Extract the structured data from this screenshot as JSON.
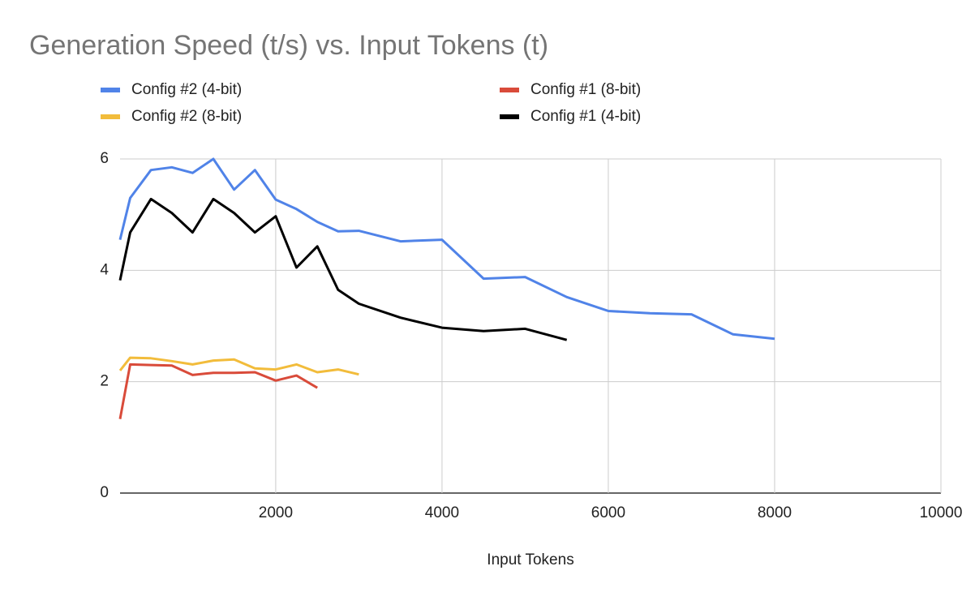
{
  "chart_data": {
    "type": "line",
    "title": "Generation Speed (t/s) vs. Input Tokens (t)",
    "x_label": "Input Tokens",
    "xlim": [
      128,
      10000
    ],
    "xticks": [
      2000,
      4000,
      6000,
      8000,
      10000
    ],
    "ylim": [
      0,
      6
    ],
    "yticks": [
      0,
      2,
      4,
      6
    ],
    "grid": true,
    "series": [
      {
        "name": "Config #2 (4-bit)",
        "color": "#5083e8",
        "x": [
          128,
          250,
          500,
          750,
          1000,
          1250,
          1500,
          1750,
          2000,
          2250,
          2500,
          2750,
          3000,
          3500,
          4000,
          4500,
          5000,
          5500,
          6000,
          6500,
          7000,
          7500,
          8000
        ],
        "values": [
          4.55,
          5.3,
          5.8,
          5.85,
          5.75,
          6.0,
          5.45,
          5.8,
          5.27,
          5.1,
          4.87,
          4.7,
          4.71,
          4.52,
          4.55,
          3.85,
          3.88,
          3.52,
          3.27,
          3.23,
          3.21,
          2.85,
          2.77
        ]
      },
      {
        "name": "Config #2 (8-bit)",
        "color": "#f2bc3b",
        "x": [
          128,
          250,
          500,
          750,
          1000,
          1250,
          1500,
          1750,
          2000,
          2250,
          2500,
          2750,
          3000
        ],
        "values": [
          2.2,
          2.43,
          2.42,
          2.37,
          2.31,
          2.38,
          2.4,
          2.24,
          2.22,
          2.31,
          2.17,
          2.22,
          2.13
        ]
      },
      {
        "name": "Config #1 (8-bit)",
        "color": "#d94b3a",
        "x": [
          128,
          250,
          500,
          750,
          1000,
          1250,
          1500,
          1750,
          2000,
          2250,
          2500
        ],
        "values": [
          1.33,
          2.31,
          2.3,
          2.29,
          2.12,
          2.16,
          2.16,
          2.17,
          2.02,
          2.11,
          1.89
        ]
      },
      {
        "name": "Config #1 (4-bit)",
        "color": "#000000",
        "x": [
          128,
          250,
          500,
          750,
          1000,
          1250,
          1500,
          1750,
          2000,
          2250,
          2500,
          2750,
          3000,
          3500,
          4000,
          4500,
          5000,
          5500
        ],
        "values": [
          3.82,
          4.68,
          5.28,
          5.03,
          4.68,
          5.28,
          5.03,
          4.68,
          4.97,
          4.05,
          4.43,
          3.65,
          3.4,
          3.15,
          2.97,
          2.91,
          2.95,
          2.75
        ]
      }
    ]
  }
}
